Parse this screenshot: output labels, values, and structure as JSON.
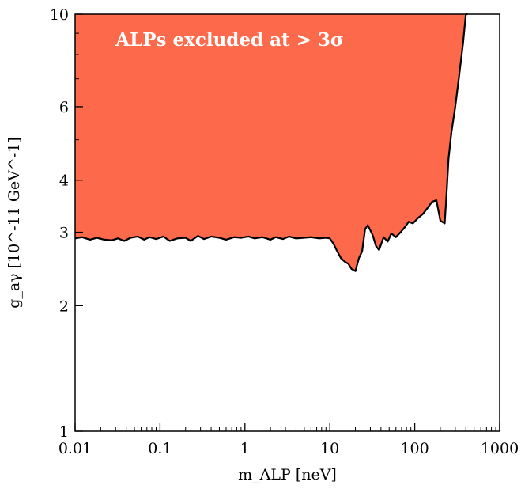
{
  "chart_data": {
    "type": "area",
    "title": "",
    "xlabel": "m_ALP [neV]",
    "ylabel": "g_aγ [10^-11 GeV^-1]",
    "xscale": "log",
    "yscale": "log",
    "xlim": [
      0.01,
      1000
    ],
    "ylim": [
      1,
      10
    ],
    "x_ticks": [
      0.01,
      0.1,
      1,
      10,
      100,
      1000
    ],
    "x_tick_labels": [
      "0.01",
      "0.1",
      "1",
      "10",
      "100",
      "1000"
    ],
    "y_ticks": [
      1,
      2,
      3,
      4,
      6,
      10
    ],
    "y_tick_labels": [
      "1",
      "2",
      "3",
      "4",
      "6",
      "10"
    ],
    "grid": false,
    "fill_color": "#fc694b",
    "line_color": "#000000",
    "annotation": "ALPs excluded at > 3σ",
    "series": [
      {
        "x": [
          0.01,
          0.012,
          0.015,
          0.018,
          0.022,
          0.027,
          0.032,
          0.038,
          0.045,
          0.055,
          0.065,
          0.075,
          0.09,
          0.11,
          0.13,
          0.16,
          0.2,
          0.23,
          0.28,
          0.33,
          0.4,
          0.5,
          0.6,
          0.75,
          0.9,
          1.1,
          1.3,
          1.6,
          2.0,
          2.3,
          2.8,
          3.3,
          4.0,
          5.0,
          6.0,
          7.5,
          9.0,
          10.0,
          11.0,
          12.0,
          13.5,
          15.0,
          16.5,
          18.0,
          20.0,
          22.0,
          24.0,
          26.0,
          28.0,
          32.0,
          35.0,
          38.0,
          43.0,
          48.0,
          53.0,
          60.0,
          68.0,
          76.0,
          85.0,
          95.0,
          110.0,
          125.0,
          140.0,
          160.0,
          180.0,
          200.0,
          225.0,
          235.0,
          250.0,
          270.0,
          300.0,
          330.0,
          370.0,
          400.0,
          420.0
        ],
        "y": [
          2.9,
          2.92,
          2.88,
          2.91,
          2.88,
          2.87,
          2.9,
          2.86,
          2.91,
          2.93,
          2.88,
          2.92,
          2.89,
          2.93,
          2.86,
          2.9,
          2.91,
          2.86,
          2.94,
          2.89,
          2.93,
          2.91,
          2.88,
          2.92,
          2.91,
          2.93,
          2.9,
          2.92,
          2.88,
          2.92,
          2.89,
          2.93,
          2.9,
          2.91,
          2.92,
          2.9,
          2.91,
          2.9,
          2.82,
          2.72,
          2.6,
          2.55,
          2.52,
          2.45,
          2.42,
          2.6,
          2.7,
          3.05,
          3.12,
          2.95,
          2.78,
          2.72,
          2.92,
          2.85,
          2.98,
          2.92,
          3.0,
          3.08,
          3.18,
          3.15,
          3.25,
          3.32,
          3.42,
          3.55,
          3.58,
          3.2,
          3.15,
          3.6,
          4.5,
          5.2,
          6.0,
          7.0,
          8.5,
          10.0,
          10.0
        ]
      }
    ]
  }
}
